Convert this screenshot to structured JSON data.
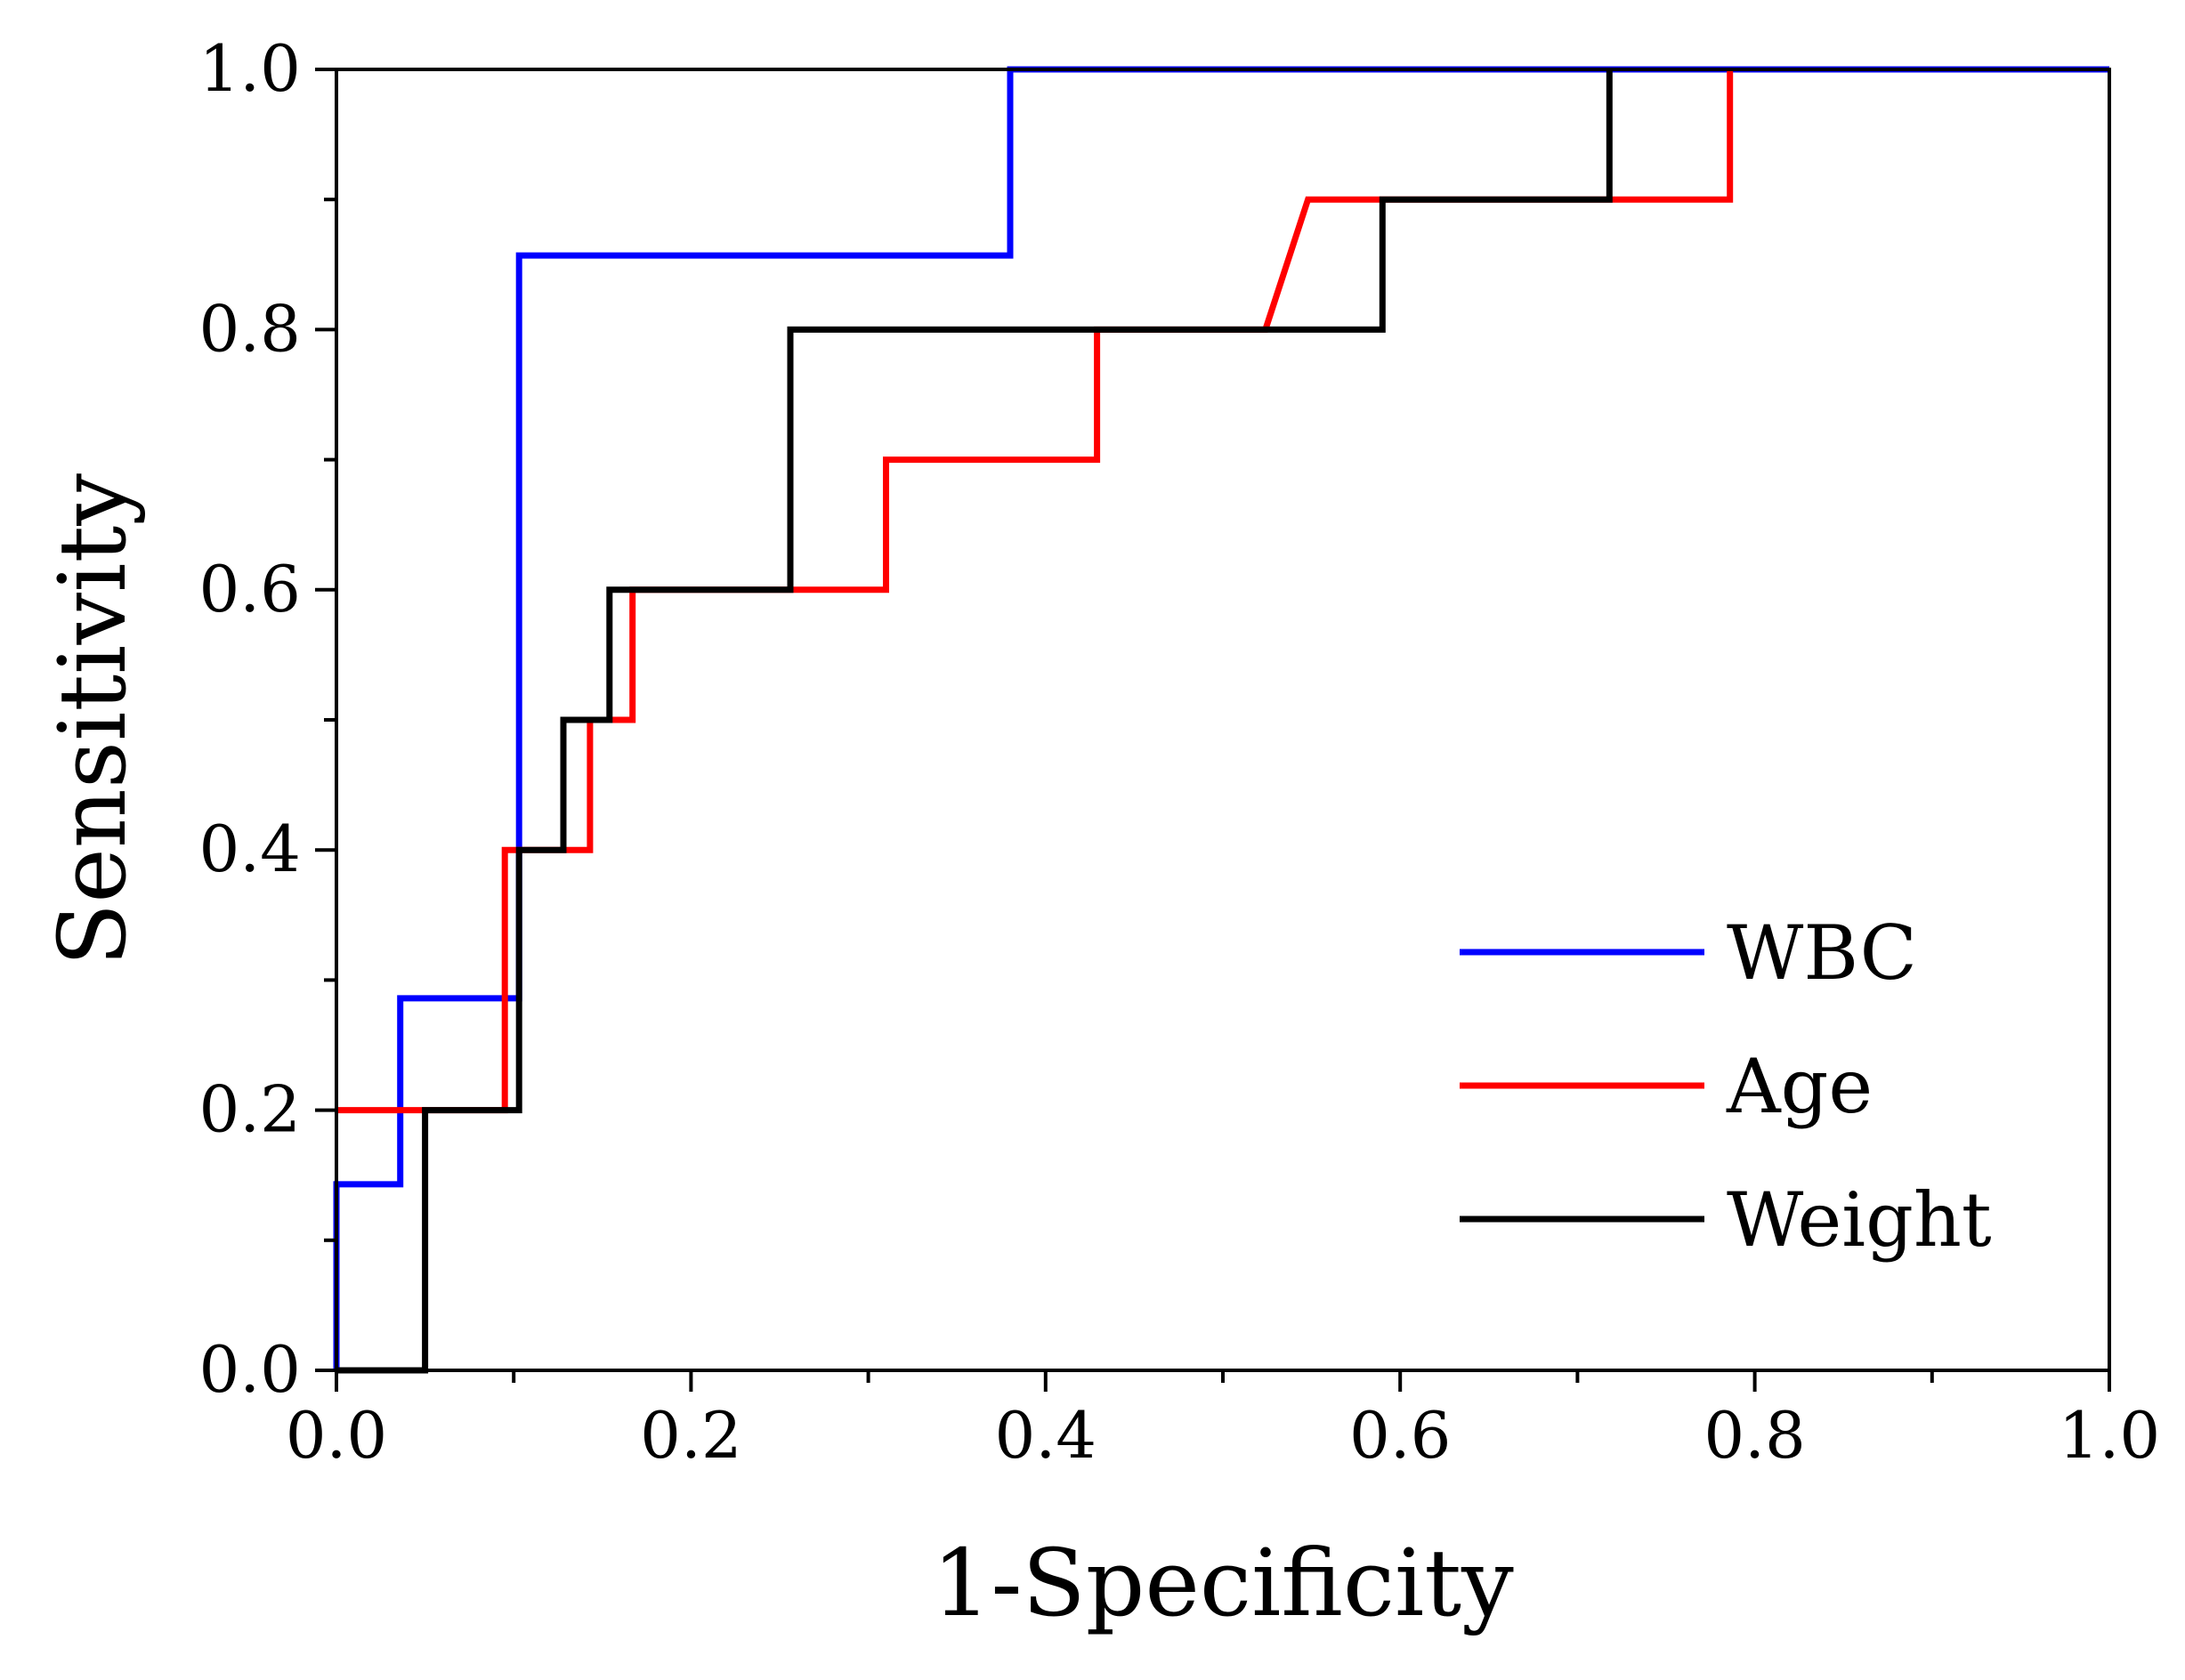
{
  "chart_data": {
    "type": "line",
    "title": "",
    "xlabel": "1-Specificity",
    "ylabel": "Sensitivity",
    "xlim": [
      0,
      1
    ],
    "ylim": [
      0,
      1
    ],
    "grid": false,
    "legend_position": "bottom-right",
    "x_ticks": [
      "0.0",
      "0.2",
      "0.4",
      "0.6",
      "0.8",
      "1.0"
    ],
    "y_ticks": [
      "0.0",
      "0.2",
      "0.4",
      "0.6",
      "0.8",
      "1.0"
    ],
    "series": [
      {
        "name": "WBC",
        "color": "#0000ff",
        "points": [
          [
            0,
            0
          ],
          [
            0,
            0.143
          ],
          [
            0.036,
            0.143
          ],
          [
            0.036,
            0.286
          ],
          [
            0.103,
            0.286
          ],
          [
            0.103,
            0.857
          ],
          [
            0.38,
            0.857
          ],
          [
            0.38,
            1.0
          ],
          [
            1.0,
            1.0
          ]
        ]
      },
      {
        "name": "Age",
        "color": "#ff0000",
        "points": [
          [
            0,
            0.2
          ],
          [
            0.048,
            0.2
          ],
          [
            0.095,
            0.2
          ],
          [
            0.095,
            0.4
          ],
          [
            0.143,
            0.4
          ],
          [
            0.143,
            0.5
          ],
          [
            0.167,
            0.5
          ],
          [
            0.167,
            0.6
          ],
          [
            0.31,
            0.6
          ],
          [
            0.31,
            0.7
          ],
          [
            0.429,
            0.7
          ],
          [
            0.429,
            0.8
          ],
          [
            0.524,
            0.8
          ],
          [
            0.548,
            0.9
          ],
          [
            0.786,
            0.9
          ],
          [
            0.786,
            1.0
          ]
        ]
      },
      {
        "name": "Weight",
        "color": "#000000",
        "points": [
          [
            0,
            0
          ],
          [
            0.05,
            0
          ],
          [
            0.05,
            0.2
          ],
          [
            0.103,
            0.2
          ],
          [
            0.103,
            0.4
          ],
          [
            0.128,
            0.4
          ],
          [
            0.128,
            0.5
          ],
          [
            0.154,
            0.5
          ],
          [
            0.154,
            0.6
          ],
          [
            0.256,
            0.6
          ],
          [
            0.256,
            0.8
          ],
          [
            0.59,
            0.8
          ],
          [
            0.59,
            0.9
          ],
          [
            0.718,
            0.9
          ],
          [
            0.718,
            1.0
          ]
        ]
      }
    ]
  }
}
